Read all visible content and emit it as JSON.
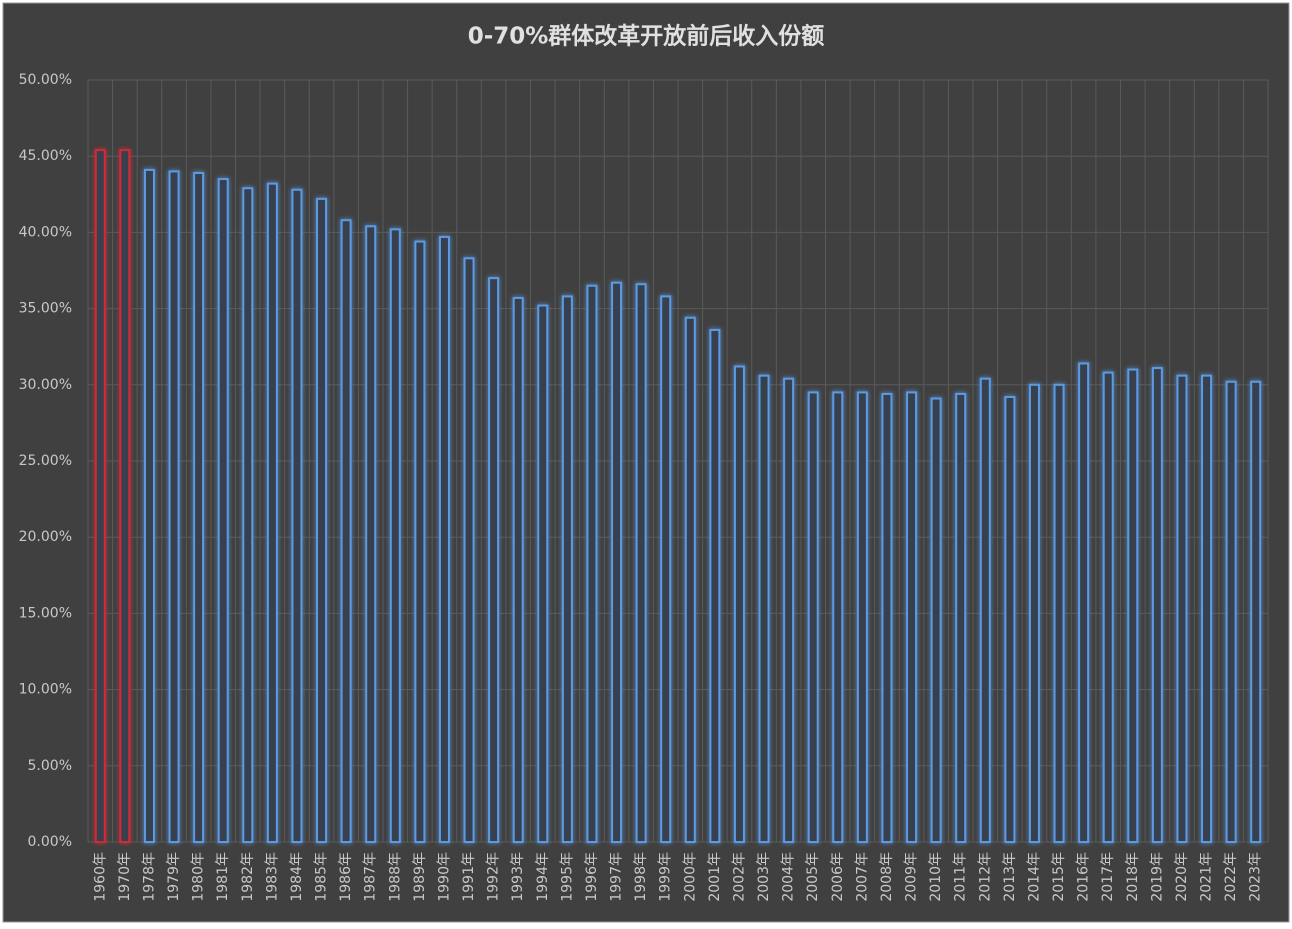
{
  "chart_data": {
    "type": "bar",
    "title": "0-70%群体改革开放前后收入份额",
    "categories": [
      "1960年",
      "1970年",
      "1978年",
      "1979年",
      "1980年",
      "1981年",
      "1982年",
      "1983年",
      "1984年",
      "1985年",
      "1986年",
      "1987年",
      "1988年",
      "1989年",
      "1990年",
      "1991年",
      "1992年",
      "1993年",
      "1994年",
      "1995年",
      "1996年",
      "1997年",
      "1998年",
      "1999年",
      "2000年",
      "2001年",
      "2002年",
      "2003年",
      "2004年",
      "2005年",
      "2006年",
      "2007年",
      "2008年",
      "2009年",
      "2010年",
      "2011年",
      "2012年",
      "2013年",
      "2014年",
      "2015年",
      "2016年",
      "2017年",
      "2018年",
      "2019年",
      "2020年",
      "2021年",
      "2022年",
      "2023年"
    ],
    "values": [
      45.4,
      45.4,
      44.1,
      44.0,
      43.9,
      43.5,
      42.9,
      43.2,
      42.8,
      42.2,
      40.8,
      40.4,
      40.2,
      39.4,
      39.7,
      38.3,
      37.0,
      35.7,
      35.2,
      35.8,
      36.5,
      36.7,
      36.6,
      35.8,
      34.4,
      33.6,
      31.2,
      30.6,
      30.4,
      29.5,
      29.5,
      29.5,
      29.4,
      29.5,
      29.1,
      29.4,
      30.4,
      29.2,
      30.0,
      30.0,
      31.4,
      30.8,
      31.0,
      31.1,
      30.6,
      30.6,
      30.2,
      30.2
    ],
    "colors": [
      "#d42a38",
      "#d42a38",
      "#5b9be3",
      "#5b9be3",
      "#5b9be3",
      "#5b9be3",
      "#5b9be3",
      "#5b9be3",
      "#5b9be3",
      "#5b9be3",
      "#5b9be3",
      "#5b9be3",
      "#5b9be3",
      "#5b9be3",
      "#5b9be3",
      "#5b9be3",
      "#5b9be3",
      "#5b9be3",
      "#5b9be3",
      "#5b9be3",
      "#5b9be3",
      "#5b9be3",
      "#5b9be3",
      "#5b9be3",
      "#5b9be3",
      "#5b9be3",
      "#5b9be3",
      "#5b9be3",
      "#5b9be3",
      "#5b9be3",
      "#5b9be3",
      "#5b9be3",
      "#5b9be3",
      "#5b9be3",
      "#5b9be3",
      "#5b9be3",
      "#5b9be3",
      "#5b9be3",
      "#5b9be3",
      "#5b9be3",
      "#5b9be3",
      "#5b9be3",
      "#5b9be3",
      "#5b9be3",
      "#5b9be3",
      "#5b9be3",
      "#5b9be3",
      "#5b9be3"
    ],
    "ylim": [
      0,
      50
    ],
    "yticks": [
      {
        "value": 0,
        "label": "0.00%"
      },
      {
        "value": 5,
        "label": "5.00%"
      },
      {
        "value": 10,
        "label": "10.00%"
      },
      {
        "value": 15,
        "label": "15.00%"
      },
      {
        "value": 20,
        "label": "20.00%"
      },
      {
        "value": 25,
        "label": "25.00%"
      },
      {
        "value": 30,
        "label": "30.00%"
      },
      {
        "value": 35,
        "label": "35.00%"
      },
      {
        "value": 40,
        "label": "40.00%"
      },
      {
        "value": 45,
        "label": "45.00%"
      },
      {
        "value": 50,
        "label": "50.00%"
      }
    ],
    "grid": true
  }
}
